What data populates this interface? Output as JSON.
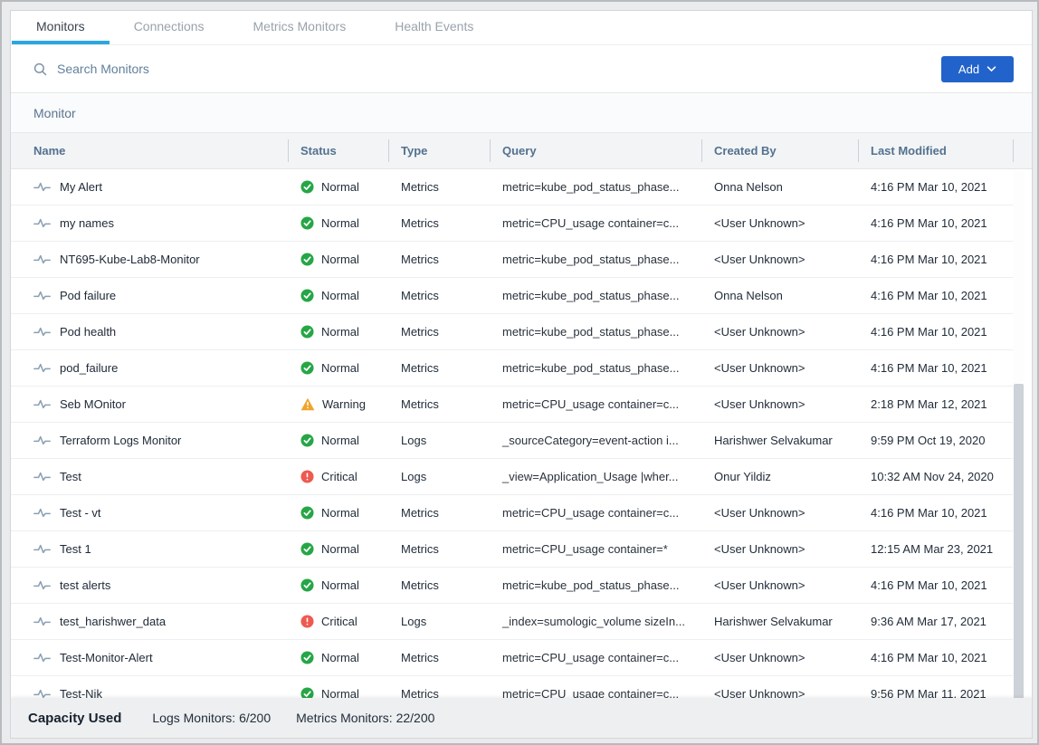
{
  "tabs": [
    {
      "label": "Monitors",
      "active": true
    },
    {
      "label": "Connections",
      "active": false
    },
    {
      "label": "Metrics Monitors",
      "active": false
    },
    {
      "label": "Health Events",
      "active": false
    }
  ],
  "search": {
    "placeholder": "Search Monitors"
  },
  "add_button": {
    "label": "Add",
    "icon": "chevron-down-icon"
  },
  "section_title": "Monitor",
  "table": {
    "columns": [
      "Name",
      "Status",
      "Type",
      "Query",
      "Created By",
      "Last Modified"
    ],
    "row_icon": "pulse-icon",
    "status_icons": {
      "Normal": "check-circle-icon",
      "Warning": "warning-triangle-icon",
      "Critical": "exclamation-circle-icon"
    },
    "rows": [
      {
        "name": "My Alert",
        "status": "Normal",
        "type": "Metrics",
        "query": "metric=kube_pod_status_phase...",
        "created_by": "Onna Nelson",
        "last_modified": "4:16 PM Mar 10, 2021"
      },
      {
        "name": "my names",
        "status": "Normal",
        "type": "Metrics",
        "query": "metric=CPU_usage container=c...",
        "created_by": "<User Unknown>",
        "last_modified": "4:16 PM Mar 10, 2021"
      },
      {
        "name": "NT695-Kube-Lab8-Monitor",
        "status": "Normal",
        "type": "Metrics",
        "query": "metric=kube_pod_status_phase...",
        "created_by": "<User Unknown>",
        "last_modified": "4:16 PM Mar 10, 2021"
      },
      {
        "name": "Pod failure",
        "status": "Normal",
        "type": "Metrics",
        "query": "metric=kube_pod_status_phase...",
        "created_by": "Onna Nelson",
        "last_modified": "4:16 PM Mar 10, 2021"
      },
      {
        "name": "Pod health",
        "status": "Normal",
        "type": "Metrics",
        "query": "metric=kube_pod_status_phase...",
        "created_by": "<User Unknown>",
        "last_modified": "4:16 PM Mar 10, 2021"
      },
      {
        "name": "pod_failure",
        "status": "Normal",
        "type": "Metrics",
        "query": "metric=kube_pod_status_phase...",
        "created_by": "<User Unknown>",
        "last_modified": "4:16 PM Mar 10, 2021"
      },
      {
        "name": "Seb MOnitor",
        "status": "Warning",
        "type": "Metrics",
        "query": "metric=CPU_usage container=c...",
        "created_by": "<User Unknown>",
        "last_modified": "2:18 PM Mar 12, 2021"
      },
      {
        "name": "Terraform Logs Monitor",
        "status": "Normal",
        "type": "Logs",
        "query": "_sourceCategory=event-action i...",
        "created_by": "Harishwer Selvakumar",
        "last_modified": "9:59 PM Oct 19, 2020"
      },
      {
        "name": "Test",
        "status": "Critical",
        "type": "Logs",
        "query": "_view=Application_Usage |wher...",
        "created_by": "Onur Yildiz",
        "last_modified": "10:32 AM Nov 24, 2020"
      },
      {
        "name": "Test - vt",
        "status": "Normal",
        "type": "Metrics",
        "query": "metric=CPU_usage container=c...",
        "created_by": "<User Unknown>",
        "last_modified": "4:16 PM Mar 10, 2021"
      },
      {
        "name": "Test 1",
        "status": "Normal",
        "type": "Metrics",
        "query": "metric=CPU_usage container=*",
        "created_by": "<User Unknown>",
        "last_modified": "12:15 AM Mar 23, 2021"
      },
      {
        "name": "test alerts",
        "status": "Normal",
        "type": "Metrics",
        "query": "metric=kube_pod_status_phase...",
        "created_by": "<User Unknown>",
        "last_modified": "4:16 PM Mar 10, 2021"
      },
      {
        "name": "test_harishwer_data",
        "status": "Critical",
        "type": "Logs",
        "query": "_index=sumologic_volume sizeIn...",
        "created_by": "Harishwer Selvakumar",
        "last_modified": "9:36 AM Mar 17, 2021"
      },
      {
        "name": "Test-Monitor-Alert",
        "status": "Normal",
        "type": "Metrics",
        "query": "metric=CPU_usage container=c...",
        "created_by": "<User Unknown>",
        "last_modified": "4:16 PM Mar 10, 2021"
      },
      {
        "name": "Test-Nik",
        "status": "Normal",
        "type": "Metrics",
        "query": "metric=CPU_usage container=c...",
        "created_by": "<User Unknown>",
        "last_modified": "9:56 PM Mar 11, 2021"
      }
    ]
  },
  "footer": {
    "title": "Capacity Used",
    "logs_capacity": "Logs Monitors: 6/200",
    "metrics_capacity": "Metrics Monitors: 22/200"
  },
  "colors": {
    "accent_blue": "#2263cb",
    "tab_underline": "#2ba6e0",
    "status_normal": "#26a646",
    "status_warning": "#f0a42c",
    "status_critical": "#ee5a50"
  }
}
